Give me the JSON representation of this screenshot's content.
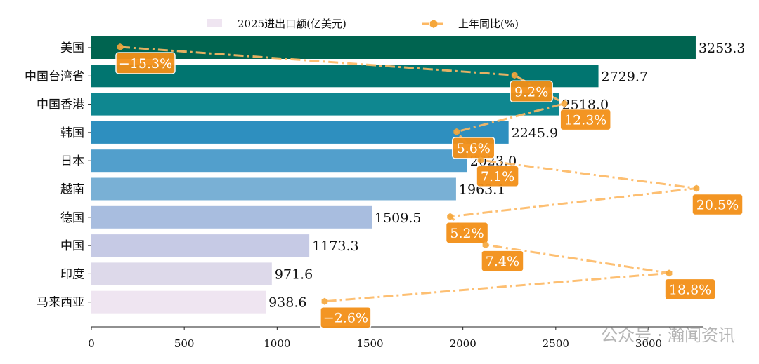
{
  "chart_data": {
    "type": "bar",
    "orientation": "horizontal",
    "categories": [
      "美国",
      "中国台湾省",
      "中国香港",
      "韩国",
      "日本",
      "越南",
      "德国",
      "中国",
      "印度",
      "马来西亚"
    ],
    "series": [
      {
        "name": "2025进出口额(亿美元)",
        "type": "bar",
        "values": [
          3253.3,
          2729.7,
          2518.0,
          2245.9,
          2023.0,
          1963.1,
          1509.5,
          1173.3,
          971.6,
          938.6
        ],
        "colors": [
          "#006450",
          "#017570",
          "#0f8790",
          "#2e8fbf",
          "#529fcc",
          "#79b0d5",
          "#a8bddf",
          "#c6cae5",
          "#ddd9ea",
          "#efe5f1"
        ]
      },
      {
        "name": "上年同比(%)",
        "type": "line",
        "values": [
          -15.3,
          9.2,
          12.3,
          5.6,
          7.1,
          20.5,
          5.2,
          7.4,
          18.8,
          -2.6
        ],
        "color": "#fdb863",
        "label_color": "#f39018"
      }
    ],
    "xticks": [
      0,
      500,
      1000,
      1500,
      2000,
      2500,
      3000
    ],
    "xlim": [
      0,
      3300
    ],
    "legend": "top-center",
    "grid": false
  },
  "watermark": "公众号 · 瀚闻资讯"
}
